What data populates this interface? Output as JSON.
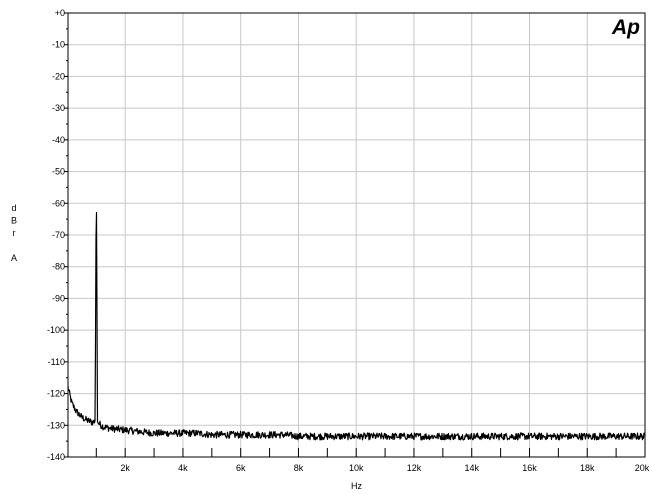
{
  "chart_data": {
    "type": "line",
    "title": "",
    "xlabel": "Hz",
    "ylabel": [
      "d",
      "B",
      "r",
      "",
      "A"
    ],
    "logo": "Ap",
    "x_scale": "linear",
    "xlim": [
      20,
      20000
    ],
    "ylim": [
      -140,
      0
    ],
    "grid": true,
    "x_ticks": [
      2000,
      4000,
      6000,
      8000,
      10000,
      12000,
      14000,
      16000,
      18000,
      20000
    ],
    "x_tick_labels": [
      "2k",
      "4k",
      "6k",
      "8k",
      "10k",
      "12k",
      "14k",
      "16k",
      "18k",
      "20k"
    ],
    "y_ticks": [
      0,
      -10,
      -20,
      -30,
      -40,
      -50,
      -60,
      -70,
      -80,
      -90,
      -100,
      -110,
      -120,
      -130,
      -140
    ],
    "y_tick_labels": [
      "+0",
      "-10",
      "-20",
      "-30",
      "-40",
      "-50",
      "-60",
      "-70",
      "-80",
      "-90",
      "-100",
      "-110",
      "-120",
      "-130",
      "-140"
    ],
    "line_color": "#000000",
    "grid_color": "#c8c8c8",
    "series": [
      {
        "x": [
          20,
          150,
          300,
          500,
          700,
          850,
          900,
          960,
          990,
          1000,
          1010,
          1040,
          1100,
          1250,
          1500,
          2000,
          2500,
          3000,
          3500,
          4000,
          4500,
          5000,
          5500,
          6000,
          6500,
          7000,
          7500,
          8000,
          8500,
          9000,
          9500,
          10000,
          10500,
          11000,
          11500,
          12000,
          12500,
          13000,
          13500,
          14000,
          14500,
          15000,
          15500,
          16000,
          16500,
          17000,
          17500,
          18000,
          18500,
          19000,
          19500,
          20000
        ],
        "y": [
          -118,
          -123,
          -125.5,
          -127.5,
          -128.5,
          -129,
          -129,
          -128.5,
          -70,
          -60.5,
          -64,
          -129,
          -129.5,
          -130.5,
          -131,
          -131.5,
          -132,
          -132.5,
          -132.5,
          -132.5,
          -132.5,
          -133,
          -133,
          -133,
          -133,
          -133,
          -133,
          -133.5,
          -133.5,
          -133.5,
          -133.5,
          -133.5,
          -133.5,
          -133.5,
          -133.5,
          -133.5,
          -133.5,
          -133.5,
          -133.5,
          -133.5,
          -133.5,
          -133.5,
          -133.5,
          -133.5,
          -133.5,
          -133.5,
          -133.5,
          -133.5,
          -133.5,
          -133.5,
          -133.5,
          -133.5
        ]
      }
    ]
  }
}
